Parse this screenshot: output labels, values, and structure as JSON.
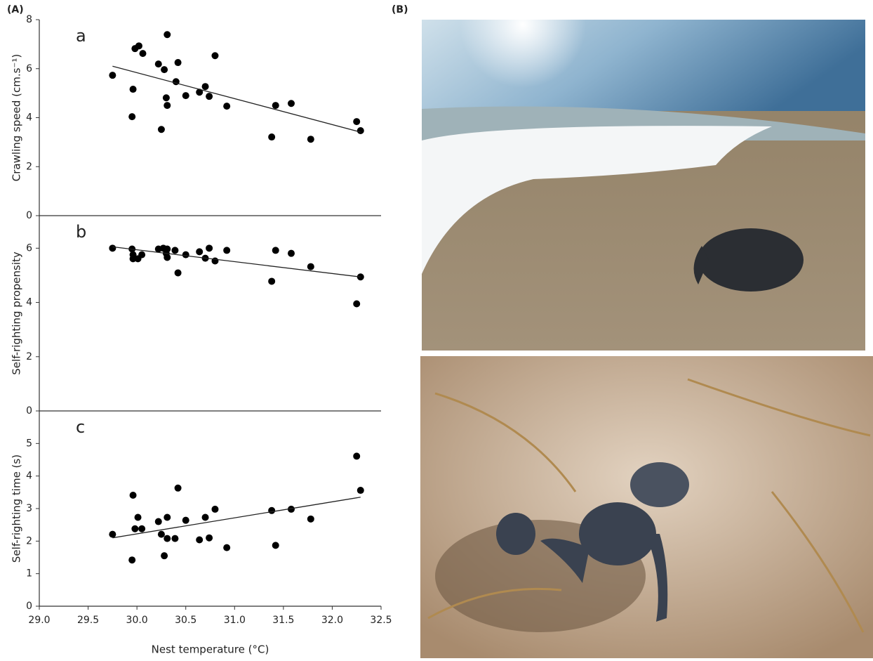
{
  "labels": {
    "panel_a": "(A)",
    "panel_b": "(B)"
  },
  "chart_data": [
    {
      "type": "scatter",
      "panel": "a",
      "y_label": "Crawling speed (cm.s⁻¹)",
      "color": "#000000",
      "xlim": [
        29,
        32.5
      ],
      "ylim": [
        0,
        8
      ],
      "yticks": [
        0,
        2,
        4,
        6,
        8
      ],
      "x": [
        29.75,
        29.98,
        30.02,
        30.06,
        29.96,
        29.95,
        30.31,
        30.22,
        30.28,
        30.42,
        30.3,
        30.31,
        30.4,
        30.5,
        30.25,
        30.64,
        30.7,
        30.74,
        30.8,
        30.92,
        31.38,
        31.42,
        31.58,
        31.78,
        32.25,
        32.29
      ],
      "values": [
        5.73,
        6.82,
        6.93,
        6.62,
        5.16,
        4.04,
        7.39,
        6.19,
        5.96,
        6.25,
        4.81,
        4.5,
        5.47,
        4.9,
        3.52,
        5.04,
        5.27,
        4.87,
        6.53,
        4.47,
        3.21,
        4.5,
        4.58,
        3.12,
        3.84,
        3.47
      ],
      "trend": {
        "x": [
          29.75,
          32.29
        ],
        "y": [
          6.1,
          3.41
        ]
      }
    },
    {
      "type": "scatter",
      "panel": "b",
      "y_label": "Self-righting propensity",
      "color": "#000000",
      "xlim": [
        29,
        32.5
      ],
      "ylim": [
        0,
        7.2
      ],
      "yticks": [
        0,
        2,
        4,
        6
      ],
      "x": [
        29.75,
        29.95,
        29.96,
        29.96,
        30.01,
        30.05,
        30.22,
        30.27,
        30.31,
        30.3,
        30.31,
        30.39,
        30.42,
        30.5,
        30.64,
        30.7,
        30.74,
        30.8,
        30.92,
        31.38,
        31.42,
        31.58,
        31.78,
        32.25,
        32.29
      ],
      "values": [
        6.0,
        5.97,
        5.76,
        5.61,
        5.61,
        5.76,
        5.97,
        6.0,
        5.97,
        5.81,
        5.66,
        5.92,
        5.09,
        5.76,
        5.87,
        5.63,
        6.0,
        5.53,
        5.92,
        4.78,
        5.92,
        5.81,
        5.32,
        3.95,
        4.94
      ],
      "trend": {
        "x": [
          29.75,
          32.29
        ],
        "y": [
          6.05,
          4.94
        ]
      }
    },
    {
      "type": "scatter",
      "panel": "c",
      "y_label": "Self-righting time (s)",
      "x_label": "Nest temperature (°C)",
      "color": "#000000",
      "xlim": [
        29,
        32.5
      ],
      "ylim": [
        0,
        6
      ],
      "yticks": [
        0,
        1,
        2,
        3,
        4,
        5
      ],
      "xticks": [
        {
          "value": 29,
          "label": "29.0"
        },
        {
          "value": 29.5,
          "label": "29.5"
        },
        {
          "value": 30,
          "label": "30.0"
        },
        {
          "value": 30.5,
          "label": "30.5"
        },
        {
          "value": 31,
          "label": "31.0"
        },
        {
          "value": 31.5,
          "label": "31.5"
        },
        {
          "value": 32,
          "label": "32.0"
        },
        {
          "value": 32.5,
          "label": "32.5"
        }
      ],
      "x": [
        29.75,
        29.95,
        29.96,
        29.98,
        30.01,
        30.05,
        30.22,
        30.25,
        30.28,
        30.31,
        30.31,
        30.39,
        30.42,
        30.5,
        30.64,
        30.7,
        30.74,
        30.8,
        30.92,
        31.38,
        31.42,
        31.58,
        31.78,
        32.25,
        32.29
      ],
      "values": [
        2.21,
        1.42,
        3.41,
        2.38,
        2.73,
        2.38,
        2.6,
        2.21,
        1.55,
        2.08,
        2.73,
        2.08,
        3.63,
        2.64,
        2.04,
        2.73,
        2.1,
        2.98,
        1.8,
        2.94,
        1.87,
        2.98,
        2.68,
        4.61,
        3.56
      ],
      "trend": {
        "x": [
          29.75,
          32.29
        ],
        "y": [
          2.1,
          3.35
        ]
      }
    }
  ]
}
